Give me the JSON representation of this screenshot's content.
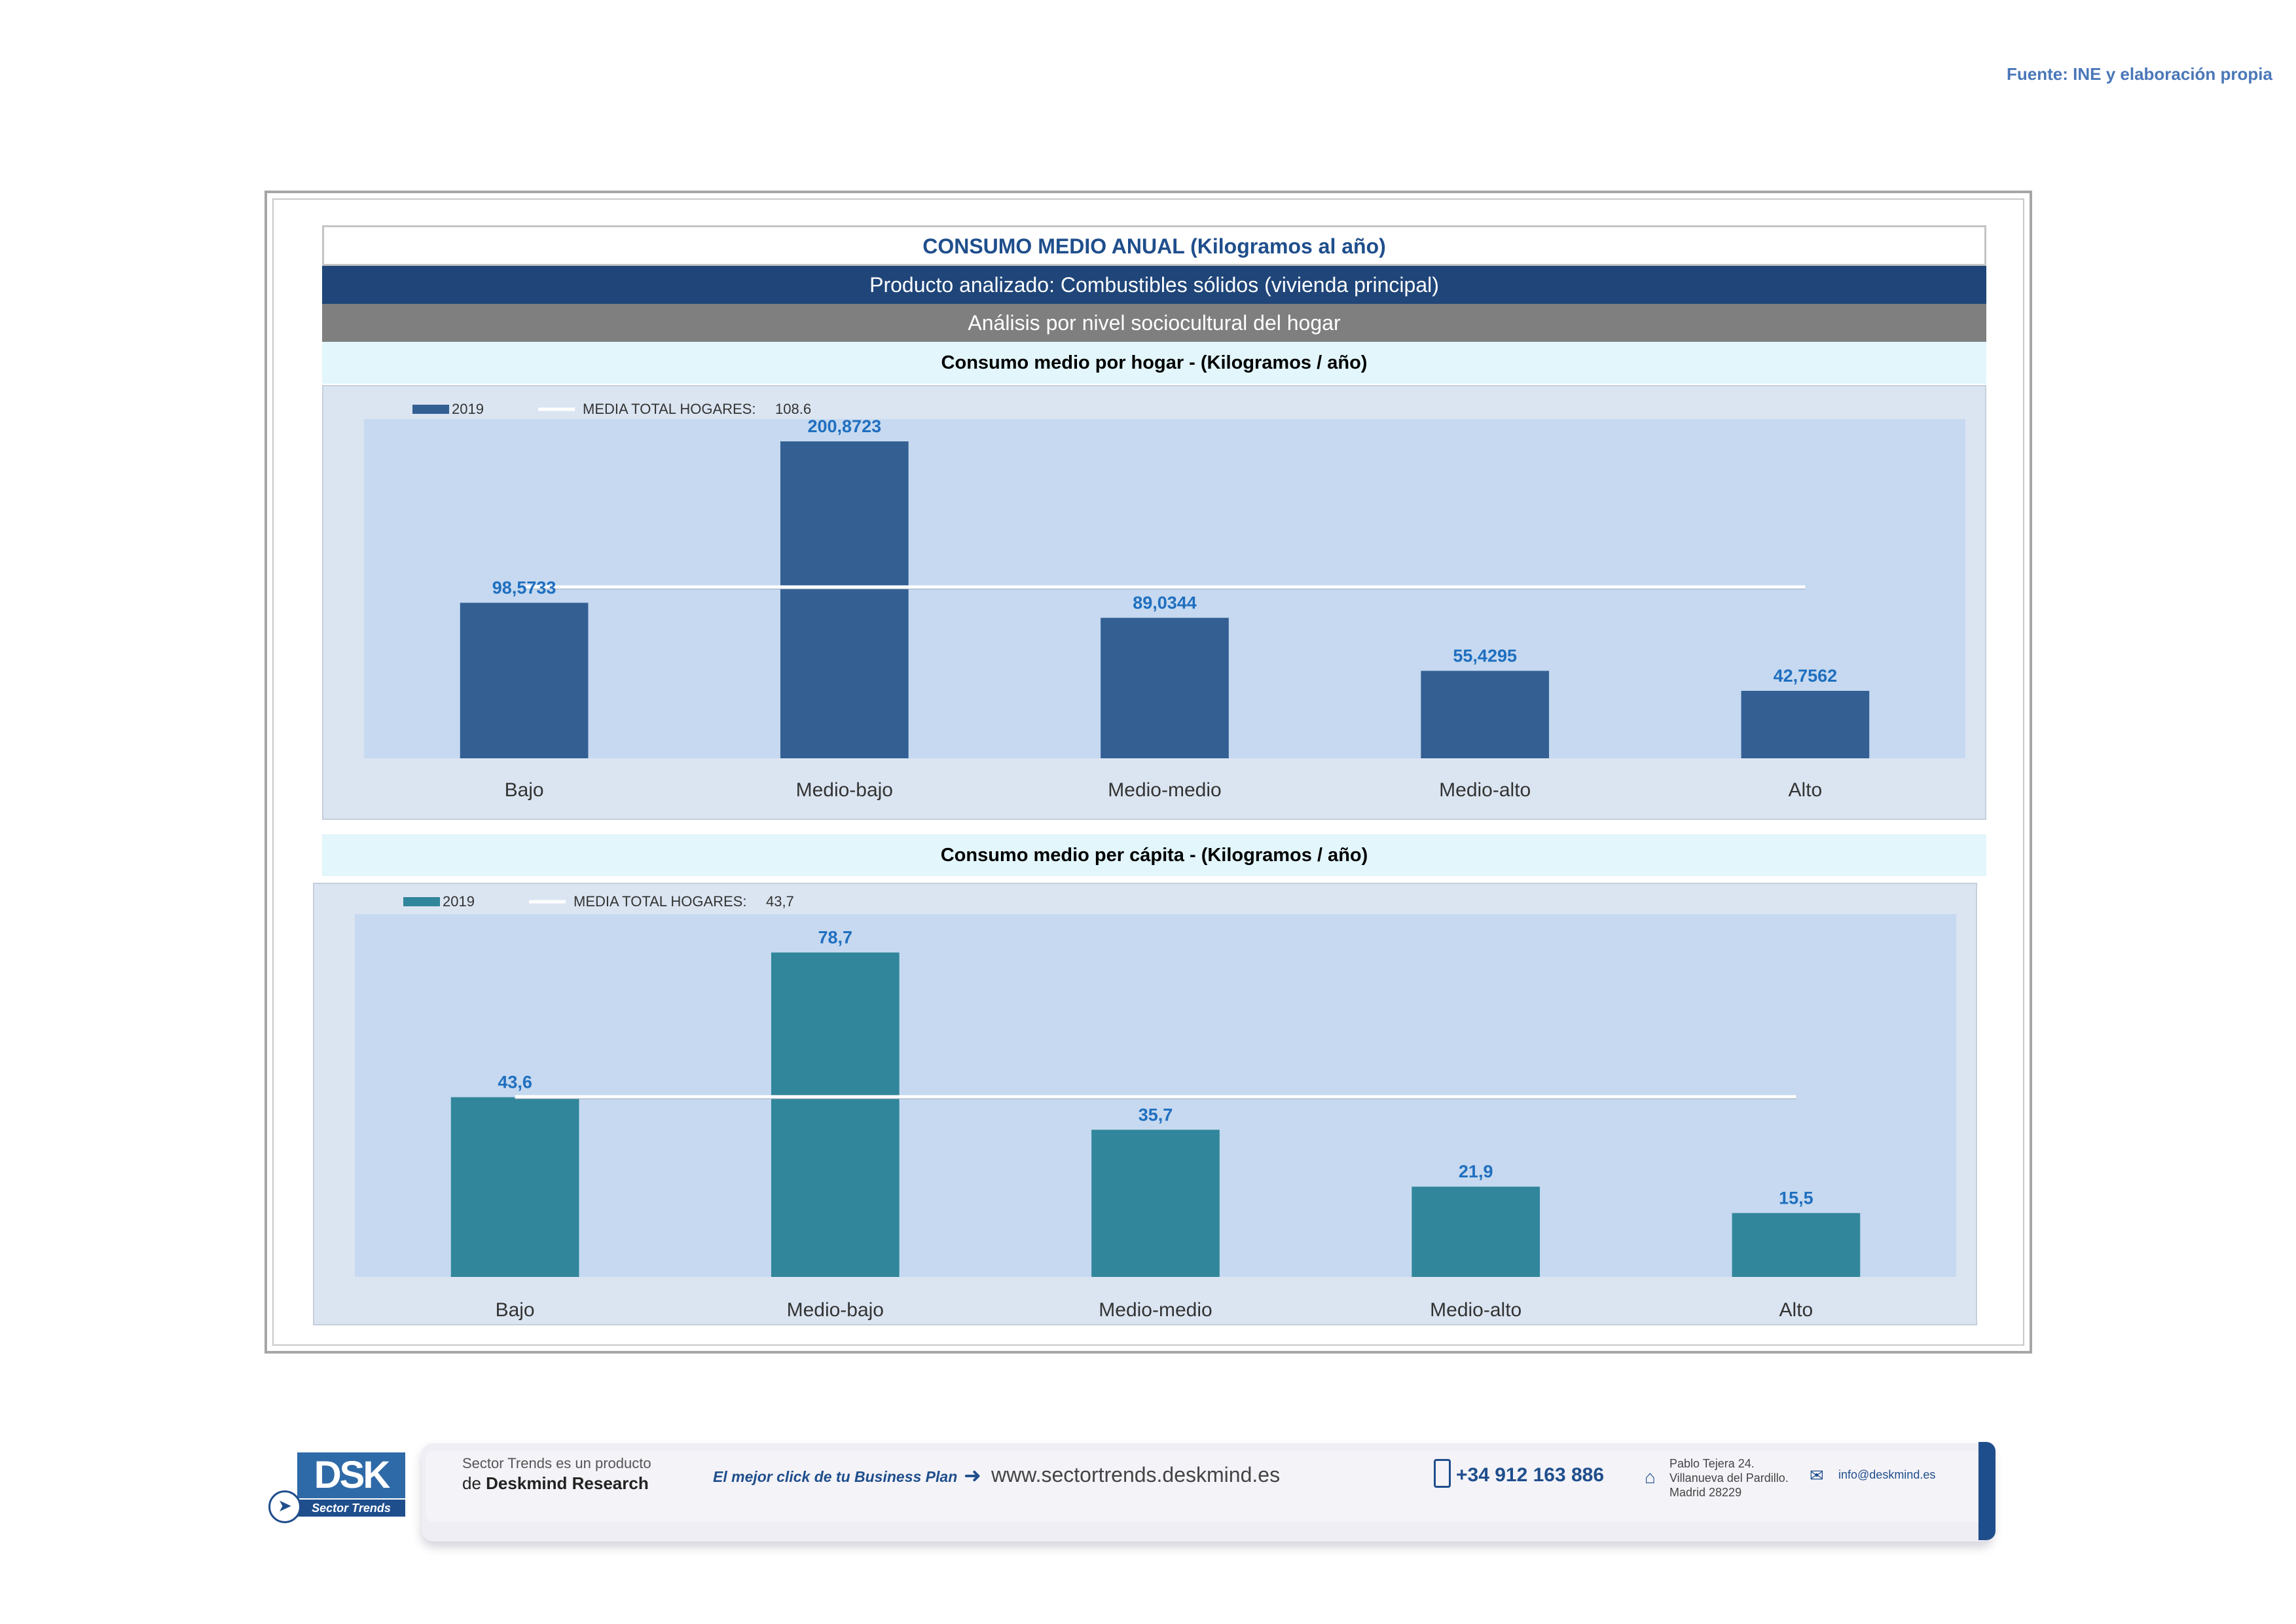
{
  "source": "Fuente: INE y elaboración propia",
  "header": {
    "title": "CONSUMO MEDIO ANUAL (Kilogramos al año)",
    "product": "Producto analizado: Combustibles sólidos (vivienda principal)",
    "analysis": "Análisis por nivel sociocultural del hogar"
  },
  "chart_data": [
    {
      "type": "bar",
      "title": "Consumo medio por hogar -  (Kilogramos / año)",
      "categories": [
        "Bajo",
        "Medio-bajo",
        "Medio-medio",
        "Medio-alto",
        "Alto"
      ],
      "series": [
        {
          "name": "2019",
          "values": [
            98.5733,
            200.8723,
            89.0344,
            55.4295,
            42.7562
          ],
          "labels": [
            "98,5733",
            "200,8723",
            "89,0344",
            "55,4295",
            "42,7562"
          ]
        }
      ],
      "reference_line": {
        "name": "MEDIA TOTAL  HOGARES:",
        "value": 108.6,
        "label": "108.6"
      },
      "ylim": [
        0,
        215
      ],
      "legend": "top-left",
      "grid": false,
      "bar_color": "#335f93"
    },
    {
      "type": "bar",
      "title": "Consumo medio per cápita -  (Kilogramos / año)",
      "categories": [
        "Bajo",
        "Medio-bajo",
        "Medio-medio",
        "Medio-alto",
        "Alto"
      ],
      "series": [
        {
          "name": "2019",
          "values": [
            43.6,
            78.7,
            35.7,
            21.9,
            15.5
          ],
          "labels": [
            "43,6",
            "78,7",
            "35,7",
            "21,9",
            "15,5"
          ]
        }
      ],
      "reference_line": {
        "name": "MEDIA TOTAL  HOGARES:",
        "value": 43.7,
        "label": "43,7"
      },
      "ylim": [
        0,
        88
      ],
      "legend": "top-left",
      "grid": false,
      "bar_color": "#31869b"
    }
  ],
  "footer": {
    "logo_text": "DSK",
    "logo_sub": "Sector Trends",
    "product_line1": "Sector Trends es un producto",
    "product_line2_prefix": "de",
    "product_line2_brand": "Deskmind Research",
    "tagline": "El mejor click de tu Business Plan",
    "website": "www.sectortrends.deskmind.es",
    "phone": "+34 912 163 886",
    "address_line1": "Pablo Tejera 24.",
    "address_line2": "Villanueva del Pardillo.",
    "address_line3": "Madrid 28229",
    "email": "info@deskmind.es"
  }
}
